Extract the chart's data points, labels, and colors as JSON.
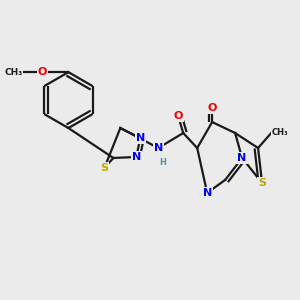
{
  "bg_color": "#ebebeb",
  "bond_color": "#1a1a1a",
  "bond_width": 1.6,
  "atom_colors": {
    "N": "#0000ee",
    "O": "#ee0000",
    "S": "#bbaa00",
    "C": "#1a1a1a",
    "H": "#4a9999"
  },
  "font_size": 7.5
}
